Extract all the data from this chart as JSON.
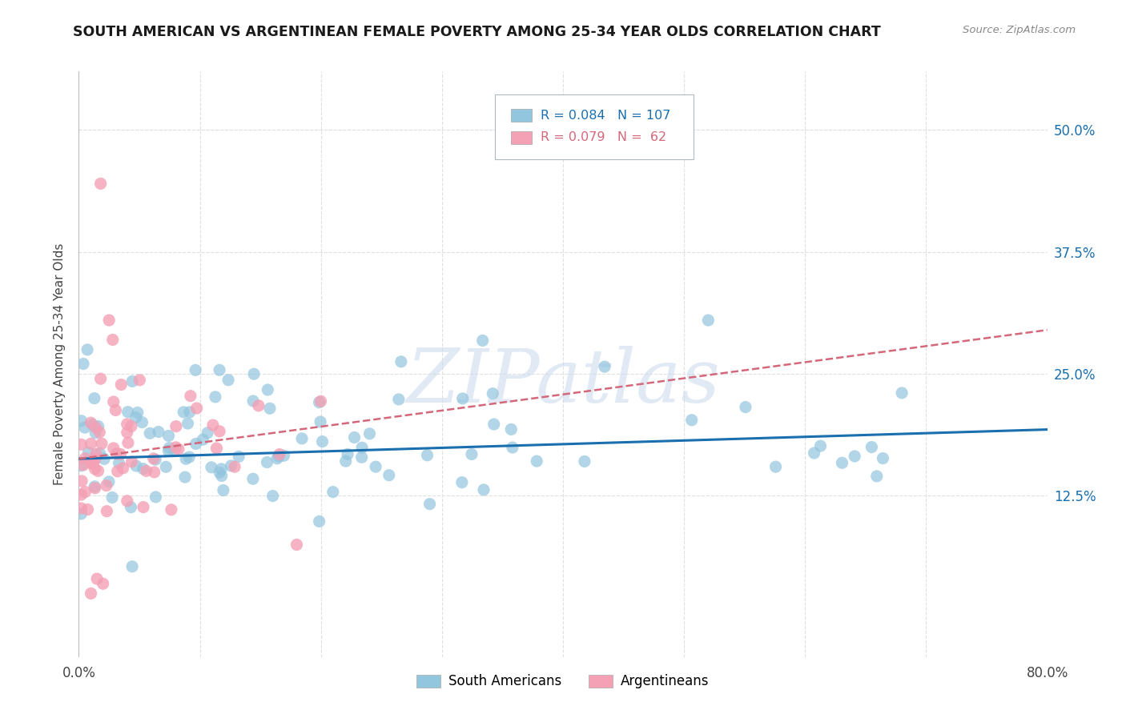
{
  "title": "SOUTH AMERICAN VS ARGENTINEAN FEMALE POVERTY AMONG 25-34 YEAR OLDS CORRELATION CHART",
  "source": "Source: ZipAtlas.com",
  "ylabel": "Female Poverty Among 25-34 Year Olds",
  "xlim": [
    0.0,
    0.8
  ],
  "ylim": [
    -0.04,
    0.56
  ],
  "yticks_right": [
    0.125,
    0.25,
    0.375,
    0.5
  ],
  "ytick_labels_right": [
    "12.5%",
    "25.0%",
    "37.5%",
    "50.0%"
  ],
  "r_blue": 0.084,
  "n_blue": 107,
  "r_pink": 0.079,
  "n_pink": 62,
  "blue_color": "#92c5de",
  "pink_color": "#f4a0b5",
  "trendline_blue_color": "#1a6faf",
  "trendline_pink_color": "#d4687a",
  "legend_label_blue": "South Americans",
  "legend_label_pink": "Argentineans",
  "watermark": "ZIPatlas",
  "background_color": "#ffffff",
  "grid_color": "#e0e0e0"
}
